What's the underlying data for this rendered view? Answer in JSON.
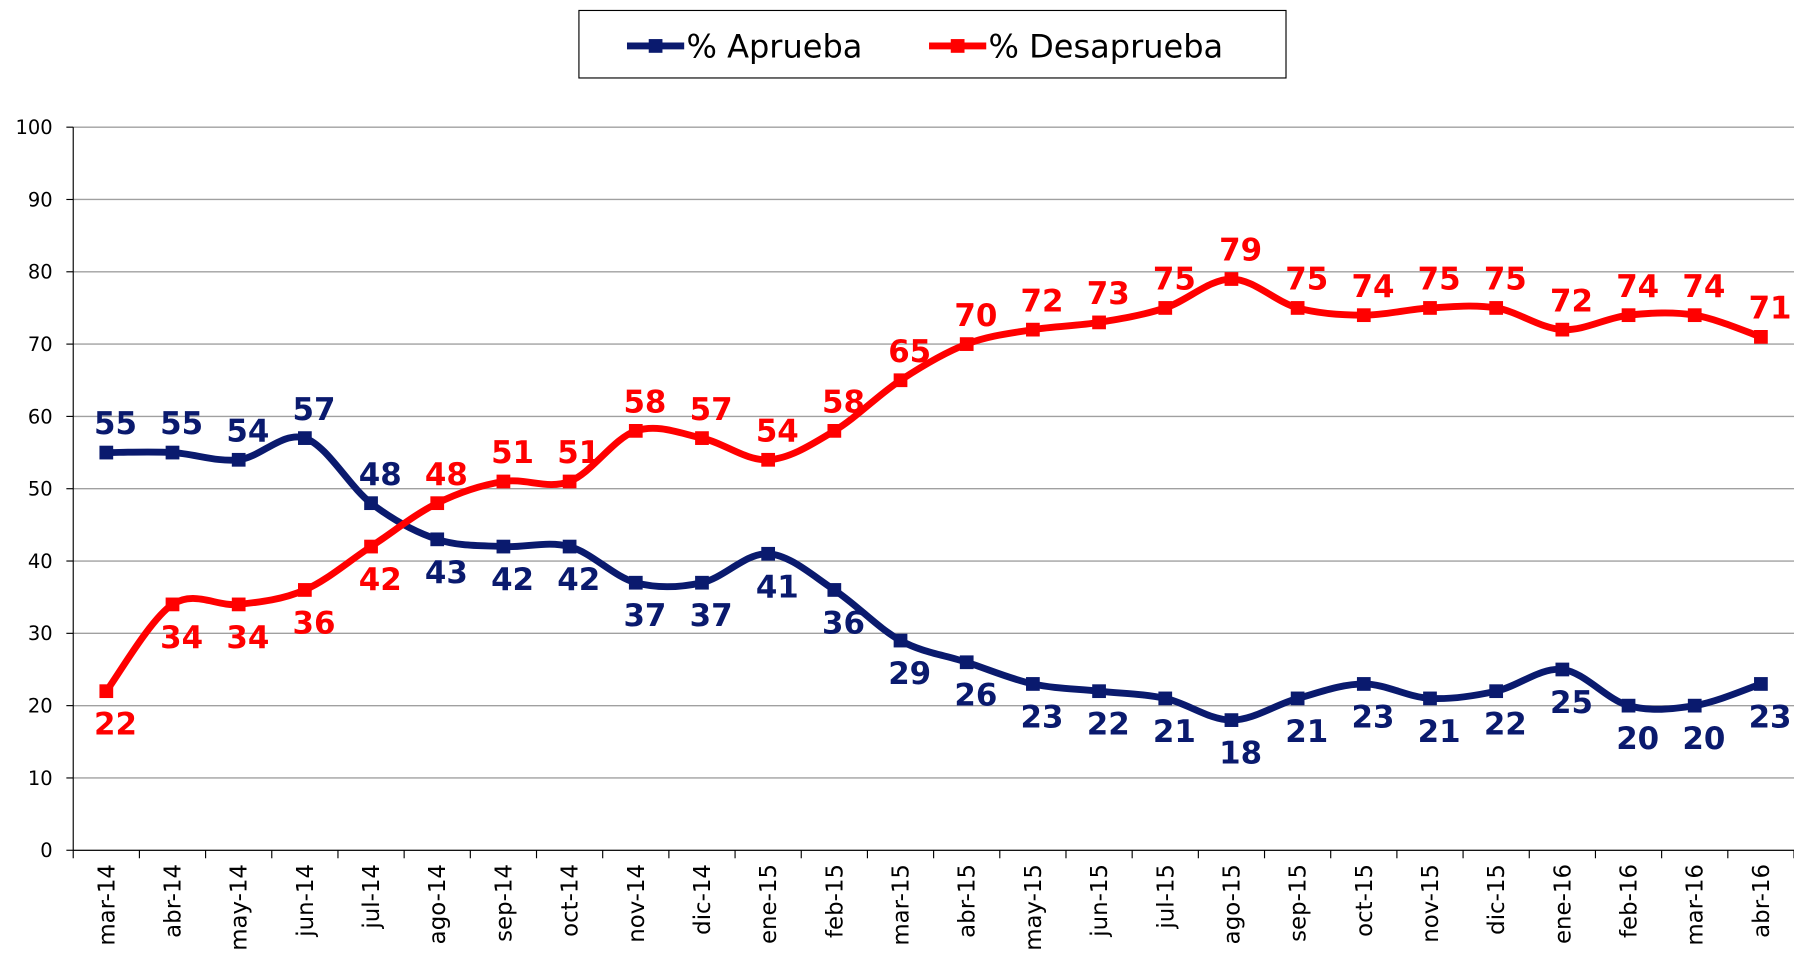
{
  "chart_data": {
    "type": "line",
    "categories": [
      "mar-14",
      "abr-14",
      "may-14",
      "jun-14",
      "jul-14",
      "ago-14",
      "sep-14",
      "oct-14",
      "nov-14",
      "dic-14",
      "ene-15",
      "feb-15",
      "mar-15",
      "abr-15",
      "may-15",
      "jun-15",
      "jul-15",
      "ago-15",
      "sep-15",
      "oct-15",
      "nov-15",
      "dic-15",
      "ene-16",
      "feb-16",
      "mar-16",
      "abr-16"
    ],
    "series": [
      {
        "name": "% Aprueba",
        "color": "#0a1a6e",
        "values": [
          55,
          55,
          54,
          57,
          48,
          43,
          42,
          42,
          37,
          37,
          41,
          36,
          29,
          26,
          23,
          22,
          21,
          18,
          21,
          23,
          21,
          22,
          25,
          20,
          20,
          23
        ]
      },
      {
        "name": "% Desaprueba",
        "color": "#ff0000",
        "values": [
          22,
          34,
          34,
          36,
          42,
          48,
          51,
          51,
          58,
          57,
          54,
          58,
          65,
          70,
          72,
          73,
          75,
          79,
          75,
          74,
          75,
          75,
          72,
          74,
          74,
          71
        ]
      }
    ],
    "ylim": [
      0,
      100
    ],
    "yticks": [
      0,
      10,
      20,
      30,
      40,
      50,
      60,
      70,
      80,
      90,
      100
    ],
    "grid": true,
    "legend": "top"
  }
}
